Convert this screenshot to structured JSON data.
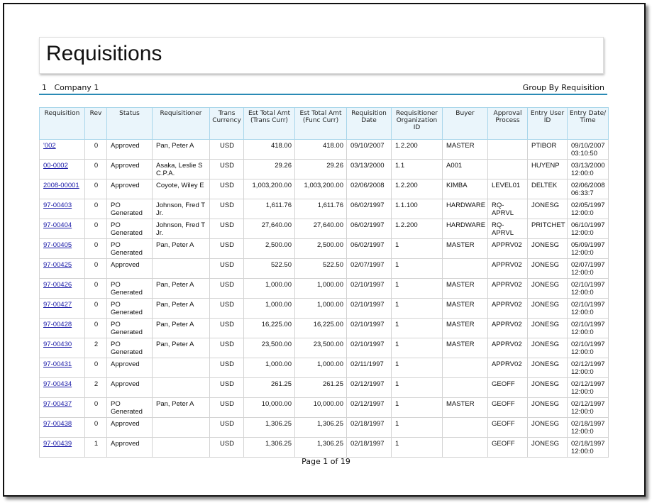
{
  "title": "Requisitions",
  "group": {
    "company": "1   Company 1",
    "group_by": "Group By Requisition"
  },
  "columns": [
    "Requisition",
    "Rev",
    "Status",
    "Requisitioner",
    "Trans Currency",
    "Est Total Amt (Trans Curr)",
    "Est Total Amt (Func Curr)",
    "Requisition Date",
    "Requisitioner Organization ID",
    "Buyer",
    "Approval Process",
    "Entry User ID",
    "Entry Date/ Time"
  ],
  "rows": [
    [
      "'002",
      "0",
      "Approved",
      "Pan, Peter A",
      "USD",
      "418.00",
      "418.00",
      "09/10/2007",
      "1.2.200",
      "MASTER",
      "",
      "PTIBOR",
      "09/10/2007 03:10:50"
    ],
    [
      "00-0002",
      "0",
      "Approved",
      "Asaka, Leslie S C.P.A.",
      "USD",
      "29.26",
      "29.26",
      "03/13/2000",
      "1.1",
      "A001",
      "",
      "HUYENP",
      "03/13/2000 12:00:0"
    ],
    [
      "2008-00001",
      "0",
      "Approved",
      "Coyote, Wiley E",
      "USD",
      "1,003,200.00",
      "1,003,200.00",
      "02/06/2008",
      "1.2.200",
      "KIMBA",
      "LEVEL01",
      "DELTEK",
      "02/06/2008 06:33:7"
    ],
    [
      "97-00403",
      "0",
      "PO Generated",
      "Johnson, Fred T Jr.",
      "USD",
      "1,611.76",
      "1,611.76",
      "06/02/1997",
      "1.1.100",
      "HARDWARE",
      "RQ-APRVL",
      "JONESG",
      "02/05/1997 12:00:0"
    ],
    [
      "97-00404",
      "0",
      "PO Generated",
      "Johnson, Fred T Jr.",
      "USD",
      "27,640.00",
      "27,640.00",
      "06/02/1997",
      "1.2.200",
      "HARDWARE",
      "RQ-APRVL",
      "PRITCHET",
      "06/10/1997 12:00:0"
    ],
    [
      "97-00405",
      "0",
      "PO Generated",
      "Pan, Peter A",
      "USD",
      "2,500.00",
      "2,500.00",
      "06/02/1997",
      "1",
      "MASTER",
      "APPRV02",
      "JONESG",
      "05/09/1997 12:00:0"
    ],
    [
      "97-00425",
      "0",
      "Approved",
      "",
      "USD",
      "522.50",
      "522.50",
      "02/07/1997",
      "1",
      "",
      "APPRV02",
      "JONESG",
      "02/07/1997 12:00:0"
    ],
    [
      "97-00426",
      "0",
      "PO Generated",
      "Pan, Peter A",
      "USD",
      "1,000.00",
      "1,000.00",
      "02/10/1997",
      "1",
      "MASTER",
      "APPRV02",
      "JONESG",
      "02/10/1997 12:00:0"
    ],
    [
      "97-00427",
      "0",
      "PO Generated",
      "Pan, Peter A",
      "USD",
      "1,000.00",
      "1,000.00",
      "02/10/1997",
      "1",
      "MASTER",
      "APPRV02",
      "JONESG",
      "02/10/1997 12:00:0"
    ],
    [
      "97-00428",
      "0",
      "PO Generated",
      "Pan, Peter A",
      "USD",
      "16,225.00",
      "16,225.00",
      "02/10/1997",
      "1",
      "MASTER",
      "APPRV02",
      "JONESG",
      "02/10/1997 12:00:0"
    ],
    [
      "97-00430",
      "2",
      "PO Generated",
      "Pan, Peter A",
      "USD",
      "23,500.00",
      "23,500.00",
      "02/10/1997",
      "1",
      "MASTER",
      "APPRV02",
      "JONESG",
      "02/10/1997 12:00:0"
    ],
    [
      "97-00431",
      "0",
      "Approved",
      "",
      "USD",
      "1,000.00",
      "1,000.00",
      "02/11/1997",
      "1",
      "",
      "APPRV02",
      "JONESG",
      "02/12/1997 12:00:0"
    ],
    [
      "97-00434",
      "2",
      "Approved",
      "",
      "USD",
      "261.25",
      "261.25",
      "02/12/1997",
      "1",
      "",
      "GEOFF",
      "JONESG",
      "02/12/1997 12:00:0"
    ],
    [
      "97-00437",
      "0",
      "PO Generated",
      "Pan, Peter A",
      "USD",
      "10,000.00",
      "10,000.00",
      "02/12/1997",
      "1",
      "MASTER",
      "GEOFF",
      "JONESG",
      "02/12/1997 12:00:0"
    ],
    [
      "97-00438",
      "0",
      "Approved",
      "",
      "USD",
      "1,306.25",
      "1,306.25",
      "02/18/1997",
      "1",
      "",
      "GEOFF",
      "JONESG",
      "02/18/1997 12:00:0"
    ],
    [
      "97-00439",
      "1",
      "Approved",
      "",
      "USD",
      "1,306.25",
      "1,306.25",
      "02/18/1997",
      "1",
      "",
      "GEOFF",
      "JONESG",
      "02/18/1997 12:00:0"
    ]
  ],
  "footer": "Page 1 of 19",
  "colors": {
    "link": "#1a1aa8",
    "accent_line": "#2a8ab5",
    "header_bg": "#eaf5fb"
  }
}
